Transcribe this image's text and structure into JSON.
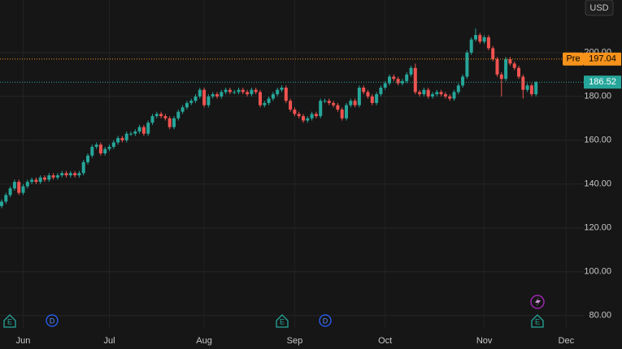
{
  "chart_data": {
    "type": "candlestick",
    "currency": "USD",
    "categories": [
      null,
      null,
      null,
      null,
      null,
      "Jun",
      null,
      null,
      null,
      null,
      null,
      null,
      null,
      null,
      null,
      null,
      null,
      null,
      null,
      null,
      null,
      null,
      null,
      null,
      null,
      "Jul",
      null,
      null,
      null,
      null,
      null,
      null,
      null,
      null,
      null,
      null,
      null,
      null,
      null,
      null,
      null,
      null,
      null,
      null,
      null,
      null,
      null,
      "Aug",
      null,
      null,
      null,
      null,
      null,
      null,
      null,
      null,
      null,
      null,
      null,
      null,
      null,
      null,
      null,
      null,
      null,
      null,
      null,
      null,
      "Sep",
      null,
      null,
      null,
      null,
      null,
      null,
      null,
      null,
      null,
      null,
      null,
      null,
      null,
      null,
      null,
      null,
      null,
      null,
      null,
      null,
      "Oct",
      null,
      null,
      null,
      null,
      null,
      null,
      null,
      null,
      null,
      null,
      null,
      null,
      null,
      null,
      null,
      null,
      null,
      null,
      null,
      null,
      null,
      null,
      "Nov",
      null,
      null,
      null,
      null,
      null,
      null,
      null,
      null,
      null,
      null,
      null,
      null,
      null,
      null,
      null,
      null,
      null,
      null,
      "Dec"
    ],
    "open": [
      130,
      132,
      135,
      138,
      141,
      136,
      139,
      141,
      142,
      141,
      143,
      142,
      144,
      143,
      144,
      145,
      144,
      145,
      144,
      145,
      150,
      153,
      157,
      158,
      154,
      156,
      157,
      159,
      161,
      160,
      163,
      163,
      164,
      166,
      163,
      168,
      171,
      172,
      171,
      170,
      166,
      170,
      173,
      175,
      177,
      178,
      180,
      183,
      176,
      180,
      181,
      180,
      182,
      183,
      182,
      182,
      183,
      182,
      181,
      183,
      182,
      176,
      177,
      179,
      181,
      183,
      184,
      178,
      174,
      172,
      171,
      169,
      170,
      172,
      171,
      178,
      178,
      177,
      176,
      174,
      170,
      176,
      178,
      176,
      184,
      182,
      180,
      177,
      181,
      184,
      186,
      189,
      188,
      186,
      187,
      190,
      193,
      182,
      181,
      183,
      180,
      181,
      182,
      181,
      180,
      179,
      182,
      185,
      189,
      200,
      206,
      208,
      205,
      207,
      202,
      197,
      190,
      188,
      197,
      195,
      193,
      189,
      183,
      185,
      181,
      null,
      null,
      null,
      null,
      null,
      null,
      null
    ],
    "high": [
      133,
      136,
      139,
      142,
      142,
      140,
      142,
      143,
      143,
      144,
      144,
      145,
      145,
      145,
      146,
      146,
      146,
      146,
      146,
      151,
      154,
      158,
      159,
      159,
      157,
      158,
      160,
      162,
      162,
      164,
      164,
      165,
      167,
      167,
      169,
      172,
      173,
      173,
      172,
      171,
      171,
      174,
      176,
      178,
      179,
      181,
      184,
      184,
      181,
      182,
      182,
      183,
      184,
      184,
      183,
      184,
      184,
      183,
      184,
      184,
      183,
      178,
      180,
      182,
      184,
      185,
      185,
      179,
      175,
      173,
      172,
      171,
      173,
      173,
      179,
      179,
      179,
      178,
      177,
      175,
      177,
      179,
      179,
      185,
      185,
      183,
      181,
      182,
      185,
      187,
      190,
      190,
      189,
      188,
      191,
      194,
      195,
      183,
      184,
      184,
      182,
      183,
      183,
      182,
      181,
      183,
      186,
      190,
      201,
      207,
      211,
      209,
      208,
      208,
      203,
      198,
      191,
      198,
      198,
      196,
      194,
      190,
      186,
      186,
      187,
      null,
      null,
      null,
      null,
      null,
      null,
      null
    ],
    "low": [
      129,
      131,
      134,
      137,
      135,
      135,
      138,
      140,
      140,
      140,
      141,
      141,
      142,
      142,
      143,
      143,
      143,
      143,
      143,
      144,
      149,
      152,
      156,
      153,
      153,
      155,
      156,
      158,
      159,
      159,
      162,
      162,
      163,
      162,
      162,
      167,
      170,
      170,
      169,
      165,
      165,
      169,
      172,
      174,
      176,
      177,
      179,
      175,
      175,
      179,
      179,
      179,
      181,
      181,
      181,
      181,
      181,
      180,
      180,
      181,
      175,
      175,
      176,
      178,
      180,
      182,
      177,
      173,
      171,
      170,
      168,
      168,
      169,
      170,
      170,
      177,
      176,
      175,
      173,
      169,
      169,
      175,
      175,
      175,
      181,
      179,
      176,
      176,
      180,
      183,
      185,
      187,
      185,
      185,
      186,
      189,
      181,
      180,
      180,
      179,
      179,
      180,
      180,
      179,
      178,
      178,
      181,
      184,
      188,
      199,
      205,
      204,
      204,
      201,
      196,
      189,
      180,
      187,
      194,
      192,
      188,
      179,
      182,
      180,
      180,
      null,
      null,
      null,
      null,
      null,
      null,
      null
    ],
    "close": [
      132,
      135,
      138,
      141,
      136,
      139,
      141,
      142,
      141,
      143,
      142,
      144,
      143,
      144,
      145,
      144,
      145,
      144,
      145,
      150,
      153,
      157,
      158,
      154,
      156,
      157,
      159,
      161,
      160,
      163,
      163,
      164,
      166,
      163,
      168,
      171,
      172,
      171,
      170,
      166,
      170,
      173,
      175,
      177,
      178,
      180,
      183,
      176,
      180,
      181,
      180,
      182,
      183,
      182,
      182,
      183,
      182,
      181,
      183,
      182,
      176,
      177,
      179,
      181,
      183,
      184,
      178,
      174,
      172,
      171,
      169,
      170,
      172,
      171,
      178,
      178,
      177,
      176,
      174,
      170,
      176,
      178,
      176,
      184,
      182,
      180,
      177,
      181,
      184,
      186,
      189,
      188,
      186,
      187,
      190,
      193,
      182,
      181,
      183,
      180,
      181,
      182,
      181,
      180,
      179,
      182,
      185,
      189,
      200,
      206,
      208,
      205,
      207,
      202,
      197,
      190,
      188,
      197,
      195,
      193,
      189,
      183,
      185,
      181,
      186.52,
      null,
      null,
      null,
      null,
      null,
      null,
      null
    ],
    "up_color": "#26a69a",
    "down_color": "#ef5350",
    "ylim": [
      74,
      224
    ],
    "yticks": [
      {
        "value": 80,
        "label": "80.00"
      },
      {
        "value": 100,
        "label": "100.00"
      },
      {
        "value": 120,
        "label": "120.00"
      },
      {
        "value": 140,
        "label": "140.00"
      },
      {
        "value": 160,
        "label": "160.00"
      },
      {
        "value": 180,
        "label": "180.00"
      },
      {
        "value": 200,
        "label": "200.00"
      }
    ],
    "premarket": {
      "label": "Pre",
      "price": 197.04,
      "color": "#f7931a"
    },
    "events": [
      "E",
      "D",
      "E",
      "D",
      "E"
    ],
    "grid": true
  }
}
